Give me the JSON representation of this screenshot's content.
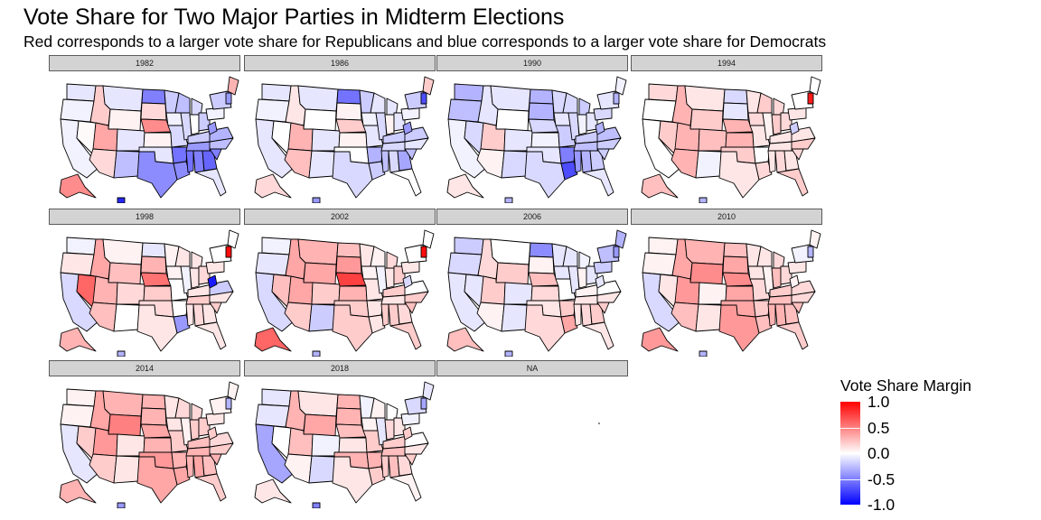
{
  "chart_data": {
    "type": "heatmap",
    "title": "Vote Share for Two Major Parties in Midterm Elections",
    "subtitle": "Red corresponds to a larger vote share for Republicans and blue corresponds to a larger vote share for Democrats",
    "regions": [
      "WA",
      "OR",
      "CA",
      "NV",
      "ID",
      "MT",
      "WY",
      "UT",
      "AZ",
      "CO",
      "NM",
      "ND",
      "SD",
      "NE",
      "KS",
      "OK",
      "TX",
      "MN",
      "IA",
      "MO",
      "AR",
      "LA",
      "WI",
      "IL",
      "MI",
      "IN",
      "OH",
      "KY",
      "TN",
      "MS",
      "AL",
      "GA",
      "FL",
      "SC",
      "NC",
      "VA",
      "WV",
      "PA",
      "NY",
      "ME",
      "NE-NEW",
      "AK",
      "HI"
    ],
    "panels": [
      {
        "label": "1982",
        "values": [
          -0.1,
          -0.05,
          -0.05,
          0.02,
          0.2,
          -0.1,
          0.05,
          0.35,
          0.15,
          -0.1,
          -0.25,
          -0.5,
          0.15,
          0.45,
          0.05,
          -0.1,
          -0.45,
          -0.2,
          -0.05,
          -0.15,
          -0.55,
          -0.45,
          -0.25,
          -0.15,
          -0.15,
          0.0,
          -0.2,
          -0.2,
          -0.4,
          -0.55,
          -0.5,
          -0.6,
          -0.1,
          -0.5,
          -0.25,
          -0.3,
          -0.4,
          -0.05,
          -0.2,
          0.3,
          -0.4,
          0.45,
          -0.85
        ]
      },
      {
        "label": "1986",
        "values": [
          -0.1,
          -0.05,
          -0.1,
          0.0,
          0.1,
          -0.1,
          0.0,
          0.3,
          0.25,
          -0.1,
          -0.1,
          -0.55,
          0.05,
          0.2,
          0.05,
          0.0,
          -0.15,
          -0.2,
          -0.05,
          -0.1,
          -0.3,
          -0.2,
          -0.1,
          -0.15,
          -0.1,
          0.05,
          -0.1,
          -0.2,
          -0.15,
          -0.25,
          -0.15,
          -0.35,
          0.0,
          -0.25,
          -0.1,
          -0.2,
          -0.4,
          -0.05,
          -0.2,
          0.2,
          -0.7,
          0.15,
          -0.4
        ]
      },
      {
        "label": "1990",
        "values": [
          -0.3,
          -0.25,
          -0.05,
          -0.15,
          -0.1,
          -0.1,
          0.0,
          0.2,
          0.05,
          -0.1,
          -0.15,
          -0.3,
          -0.3,
          -0.15,
          -0.05,
          -0.1,
          -0.15,
          -0.15,
          -0.1,
          -0.2,
          -0.5,
          -0.7,
          -0.15,
          -0.15,
          -0.2,
          -0.05,
          -0.1,
          -0.2,
          -0.25,
          -0.4,
          -0.3,
          -0.2,
          -0.1,
          -0.2,
          -0.2,
          -0.25,
          -0.3,
          -0.15,
          -0.1,
          -0.05,
          -0.3,
          0.1,
          -0.3
        ]
      },
      {
        "label": "1994",
        "values": [
          0.15,
          0.0,
          0.0,
          0.2,
          0.3,
          0.1,
          0.2,
          0.3,
          0.3,
          0.25,
          -0.05,
          -0.15,
          -0.1,
          0.3,
          0.3,
          0.2,
          0.1,
          0.1,
          0.15,
          0.1,
          0.0,
          0.15,
          0.2,
          0.05,
          0.15,
          0.2,
          0.15,
          0.1,
          0.1,
          0.1,
          0.15,
          0.1,
          0.2,
          0.15,
          0.2,
          0.1,
          -0.2,
          0.1,
          0.0,
          0.0,
          0.9,
          0.25,
          -0.3
        ]
      },
      {
        "label": "1998",
        "values": [
          -0.05,
          0.1,
          -0.15,
          0.6,
          0.35,
          0.05,
          0.25,
          0.3,
          0.25,
          0.15,
          0.0,
          -0.1,
          0.3,
          0.55,
          0.2,
          0.15,
          0.1,
          0.05,
          0.05,
          0.0,
          0.0,
          -0.4,
          0.1,
          -0.05,
          0.1,
          0.1,
          0.15,
          0.1,
          0.2,
          0.1,
          0.15,
          0.1,
          0.1,
          0.2,
          0.1,
          -0.2,
          -0.9,
          0.1,
          0.0,
          0.0,
          0.95,
          0.3,
          -0.3
        ]
      },
      {
        "label": "2002",
        "values": [
          -0.05,
          -0.1,
          -0.15,
          0.25,
          0.35,
          0.3,
          0.35,
          0.35,
          0.2,
          0.2,
          -0.2,
          0.25,
          0.4,
          0.75,
          0.3,
          0.2,
          0.2,
          0.1,
          0.05,
          0.1,
          0.1,
          0.1,
          0.05,
          -0.05,
          0.15,
          0.1,
          0.2,
          0.2,
          0.1,
          0.2,
          0.2,
          0.15,
          0.2,
          0.25,
          0.2,
          0.0,
          -0.15,
          0.1,
          0.0,
          0.0,
          0.95,
          0.6,
          -0.3
        ]
      },
      {
        "label": "2006",
        "values": [
          -0.2,
          -0.15,
          -0.1,
          -0.1,
          0.15,
          0.0,
          0.2,
          0.2,
          0.05,
          -0.1,
          -0.1,
          -0.45,
          0.05,
          0.25,
          0.15,
          0.1,
          0.15,
          -0.1,
          -0.1,
          0.0,
          0.2,
          0.35,
          -0.1,
          -0.1,
          -0.05,
          0.05,
          -0.1,
          0.05,
          0.1,
          0.1,
          0.15,
          0.2,
          0.1,
          0.2,
          0.1,
          0.0,
          -0.1,
          -0.2,
          -0.25,
          -0.3,
          -0.4,
          0.25,
          -0.3
        ]
      },
      {
        "label": "2010",
        "values": [
          0.05,
          0.05,
          -0.15,
          0.1,
          0.35,
          0.3,
          0.45,
          0.4,
          0.25,
          0.05,
          0.1,
          0.25,
          0.35,
          0.45,
          0.35,
          0.35,
          0.4,
          0.1,
          0.1,
          0.15,
          0.2,
          0.25,
          0.1,
          0.05,
          0.15,
          0.25,
          0.15,
          0.2,
          0.25,
          0.3,
          0.3,
          0.25,
          0.2,
          0.25,
          0.15,
          0.15,
          0.05,
          0.1,
          -0.05,
          0.05,
          -0.3,
          0.4,
          -0.3
        ]
      },
      {
        "label": "2014",
        "values": [
          0.05,
          0.05,
          -0.1,
          0.2,
          0.35,
          0.3,
          0.5,
          0.4,
          0.2,
          0.1,
          0.1,
          0.3,
          0.3,
          0.35,
          0.3,
          0.4,
          0.35,
          0.1,
          0.1,
          0.2,
          0.3,
          0.35,
          0.15,
          0.05,
          0.15,
          0.2,
          0.2,
          0.25,
          0.3,
          0.3,
          0.35,
          0.25,
          0.2,
          0.3,
          0.2,
          0.15,
          0.2,
          0.1,
          0.05,
          0.05,
          -0.3,
          0.3,
          -0.4
        ]
      },
      {
        "label": "2018",
        "values": [
          -0.1,
          -0.1,
          -0.35,
          0.0,
          0.3,
          0.1,
          0.35,
          0.25,
          0.05,
          -0.05,
          -0.15,
          0.3,
          0.3,
          0.25,
          0.1,
          0.3,
          0.1,
          -0.05,
          0.05,
          0.2,
          0.3,
          0.2,
          0.05,
          -0.1,
          0.0,
          0.15,
          0.1,
          0.2,
          0.25,
          0.2,
          0.25,
          0.15,
          0.05,
          0.2,
          0.1,
          0.0,
          0.2,
          -0.05,
          -0.15,
          -0.1,
          -0.35,
          0.1,
          -0.5
        ]
      },
      {
        "label": "NA",
        "values": []
      }
    ],
    "legend": {
      "title": "Vote Share Margin",
      "ticks": [
        "1.0",
        "0.5",
        "0.0",
        "-0.5",
        "-1.0"
      ],
      "tick_values": [
        1.0,
        0.5,
        0.0,
        -0.5,
        -1.0
      ],
      "range": [
        -1.0,
        1.0
      ],
      "low_color": "#0000ff",
      "mid_color": "#ffffff",
      "high_color": "#ff0000"
    }
  }
}
